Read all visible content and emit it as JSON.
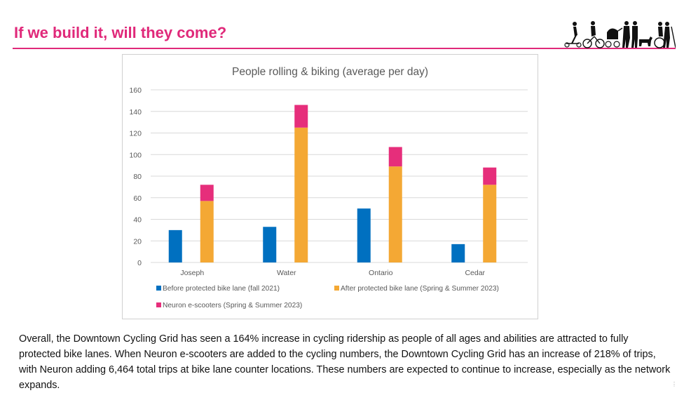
{
  "page": {
    "title": "If we build it, will they come?",
    "body": "Overall, the Downtown Cycling Grid has seen a 164% increase in cycling ridership as people of all ages and abilities are attracted to fully protected bike lanes. When Neuron e-scooters are added to the cycling numbers, the Downtown Cycling Grid has an increase of 218% of trips, with Neuron adding 6,464 total trips at bike lane counter locations.  These numbers are expected to continue to increase, especially as the network expands."
  },
  "logo": {
    "icon": "people-rolling-walking-silhouettes-icon"
  },
  "colors": {
    "accent": "#e0297a",
    "before": "#0070c0",
    "after": "#f4a834",
    "neuron": "#e62e7b",
    "grid": "#d9d9d9"
  },
  "chart_data": {
    "type": "bar",
    "stacked_partial": true,
    "title": "People rolling & biking (average per day)",
    "categories": [
      "Joseph",
      "Water",
      "Ontario",
      "Cedar"
    ],
    "series": [
      {
        "name": "Before protected bike lane (fall 2021)",
        "values": [
          30,
          33,
          50,
          17
        ]
      },
      {
        "name": "After protected bike lane (Spring & Summer 2023)",
        "values": [
          57,
          125,
          89,
          72
        ]
      },
      {
        "name": "Neuron e-scooters (Spring & Summer 2023)",
        "values": [
          15,
          21,
          18,
          16
        ],
        "stacked_on": "After protected bike lane (Spring & Summer 2023)"
      }
    ],
    "ylim": [
      0,
      160
    ],
    "yticks": [
      "0",
      "20",
      "40",
      "60",
      "80",
      "100",
      "120",
      "140",
      "160"
    ],
    "grid": true,
    "legend_position": "bottom",
    "xlabel": "",
    "ylabel": ""
  }
}
